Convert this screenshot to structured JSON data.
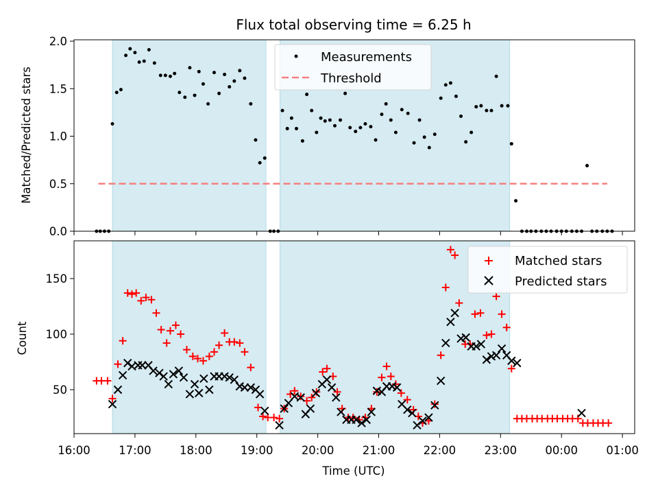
{
  "chart_data": {
    "type": "scatter",
    "title": "Flux total observing time = 6.25 h",
    "xlabel": "Time (UTC)",
    "x_tick_labels": [
      "16:00",
      "17:00",
      "18:00",
      "19:00",
      "20:00",
      "21:00",
      "22:00",
      "23:00",
      "00:00",
      "01:00"
    ],
    "x_range_hours": [
      16.0,
      25.2
    ],
    "shaded_regions": [
      [
        16.63,
        19.15
      ],
      [
        19.38,
        23.15
      ]
    ],
    "top": {
      "ylabel": "Matched/Predicted stars",
      "ylim": [
        0,
        2.0
      ],
      "y_ticks": [
        "0.0",
        "0.5",
        "1.0",
        "1.5",
        "2.0"
      ],
      "legend": {
        "measurements": "Measurements",
        "threshold": "Threshold"
      },
      "threshold": {
        "value": 0.5,
        "x_start": 16.4,
        "x_end": 24.75
      },
      "measurements": [
        [
          16.37,
          0
        ],
        [
          16.43,
          0
        ],
        [
          16.5,
          0
        ],
        [
          16.57,
          0
        ],
        [
          16.63,
          1.13
        ],
        [
          16.7,
          1.46
        ],
        [
          16.77,
          1.49
        ],
        [
          16.85,
          1.85
        ],
        [
          16.92,
          1.92
        ],
        [
          17.0,
          1.88
        ],
        [
          17.07,
          1.78
        ],
        [
          17.15,
          1.79
        ],
        [
          17.23,
          1.91
        ],
        [
          17.32,
          1.77
        ],
        [
          17.42,
          1.64
        ],
        [
          17.5,
          1.64
        ],
        [
          17.58,
          1.63
        ],
        [
          17.65,
          1.66
        ],
        [
          17.73,
          1.46
        ],
        [
          17.82,
          1.41
        ],
        [
          17.9,
          1.72
        ],
        [
          17.98,
          1.43
        ],
        [
          18.05,
          1.68
        ],
        [
          18.12,
          1.55
        ],
        [
          18.2,
          1.34
        ],
        [
          18.3,
          1.67
        ],
        [
          18.38,
          1.45
        ],
        [
          18.47,
          1.65
        ],
        [
          18.55,
          1.52
        ],
        [
          18.63,
          1.58
        ],
        [
          18.72,
          1.69
        ],
        [
          18.8,
          1.61
        ],
        [
          18.9,
          1.34
        ],
        [
          18.98,
          0.96
        ],
        [
          19.05,
          0.72
        ],
        [
          19.13,
          0.77
        ],
        [
          19.22,
          0
        ],
        [
          19.28,
          0
        ],
        [
          19.35,
          0
        ],
        [
          19.42,
          1.27
        ],
        [
          19.5,
          1.08
        ],
        [
          19.57,
          1.19
        ],
        [
          19.65,
          1.08
        ],
        [
          19.75,
          0.95
        ],
        [
          19.82,
          1.44
        ],
        [
          19.9,
          1.27
        ],
        [
          19.98,
          1.04
        ],
        [
          20.05,
          1.19
        ],
        [
          20.12,
          1.16
        ],
        [
          20.2,
          1.17
        ],
        [
          20.28,
          1.11
        ],
        [
          20.37,
          1.17
        ],
        [
          20.45,
          1.45
        ],
        [
          20.53,
          1.09
        ],
        [
          20.62,
          1.05
        ],
        [
          20.7,
          1.09
        ],
        [
          20.78,
          1.13
        ],
        [
          20.87,
          1.1
        ],
        [
          20.95,
          0.96
        ],
        [
          21.05,
          1.23
        ],
        [
          21.12,
          1.34
        ],
        [
          21.2,
          1.17
        ],
        [
          21.28,
          1.04
        ],
        [
          21.38,
          1.28
        ],
        [
          21.48,
          1.24
        ],
        [
          21.58,
          0.93
        ],
        [
          21.67,
          1.17
        ],
        [
          21.75,
          0.99
        ],
        [
          21.83,
          0.88
        ],
        [
          21.92,
          1.02
        ],
        [
          22.02,
          1.4
        ],
        [
          22.1,
          1.54
        ],
        [
          22.18,
          1.56
        ],
        [
          22.27,
          1.42
        ],
        [
          22.35,
          1.21
        ],
        [
          22.43,
          0.94
        ],
        [
          22.52,
          1.04
        ],
        [
          22.6,
          1.31
        ],
        [
          22.68,
          1.32
        ],
        [
          22.77,
          1.27
        ],
        [
          22.85,
          1.27
        ],
        [
          22.93,
          1.63
        ],
        [
          23.02,
          1.32
        ],
        [
          23.12,
          1.32
        ],
        [
          23.18,
          0.92
        ],
        [
          23.25,
          0.32
        ],
        [
          23.35,
          0
        ],
        [
          23.43,
          0
        ],
        [
          23.5,
          0
        ],
        [
          23.58,
          0
        ],
        [
          23.67,
          0
        ],
        [
          23.75,
          0
        ],
        [
          23.83,
          0
        ],
        [
          23.92,
          0
        ],
        [
          24.0,
          0
        ],
        [
          24.08,
          0
        ],
        [
          24.17,
          0
        ],
        [
          24.25,
          0
        ],
        [
          24.33,
          0
        ],
        [
          24.42,
          0.69
        ],
        [
          24.5,
          0
        ],
        [
          24.58,
          0
        ],
        [
          24.67,
          0
        ],
        [
          24.75,
          0
        ],
        [
          24.83,
          0
        ]
      ]
    },
    "bottom": {
      "ylabel": "Count",
      "ylim": [
        8,
        186
      ],
      "y_ticks": [
        50,
        100,
        150
      ],
      "legend": {
        "matched": "Matched stars",
        "predicted": "Predicted stars"
      },
      "matched": [
        [
          16.37,
          58
        ],
        [
          16.45,
          58
        ],
        [
          16.55,
          58
        ],
        [
          16.63,
          42
        ],
        [
          16.72,
          73
        ],
        [
          16.8,
          94
        ],
        [
          16.88,
          137
        ],
        [
          16.95,
          136
        ],
        [
          17.02,
          137
        ],
        [
          17.1,
          130
        ],
        [
          17.18,
          133
        ],
        [
          17.27,
          131
        ],
        [
          17.35,
          119
        ],
        [
          17.43,
          104
        ],
        [
          17.52,
          92
        ],
        [
          17.58,
          103
        ],
        [
          17.67,
          108
        ],
        [
          17.75,
          100
        ],
        [
          17.85,
          86
        ],
        [
          17.95,
          80
        ],
        [
          18.03,
          78
        ],
        [
          18.12,
          76
        ],
        [
          18.22,
          80
        ],
        [
          18.3,
          84
        ],
        [
          18.38,
          90
        ],
        [
          18.47,
          101
        ],
        [
          18.55,
          93
        ],
        [
          18.63,
          93
        ],
        [
          18.72,
          92
        ],
        [
          18.8,
          84
        ],
        [
          18.9,
          70
        ],
        [
          19.02,
          34
        ],
        [
          19.1,
          26
        ],
        [
          19.18,
          25
        ],
        [
          19.28,
          25
        ],
        [
          19.37,
          24
        ],
        [
          19.45,
          33
        ],
        [
          19.55,
          46
        ],
        [
          19.62,
          49
        ],
        [
          19.72,
          44
        ],
        [
          19.82,
          40
        ],
        [
          19.9,
          43
        ],
        [
          19.98,
          48
        ],
        [
          20.08,
          66
        ],
        [
          20.15,
          69
        ],
        [
          20.25,
          62
        ],
        [
          20.32,
          48
        ],
        [
          20.4,
          33
        ],
        [
          20.5,
          25
        ],
        [
          20.58,
          25
        ],
        [
          20.68,
          23
        ],
        [
          20.78,
          25
        ],
        [
          20.88,
          33
        ],
        [
          20.97,
          48
        ],
        [
          21.05,
          61
        ],
        [
          21.13,
          71
        ],
        [
          21.2,
          62
        ],
        [
          21.28,
          55
        ],
        [
          21.37,
          47
        ],
        [
          21.47,
          41
        ],
        [
          21.57,
          32
        ],
        [
          21.65,
          26
        ],
        [
          21.72,
          20
        ],
        [
          21.82,
          22
        ],
        [
          21.92,
          37
        ],
        [
          22.02,
          81
        ],
        [
          22.1,
          142
        ],
        [
          22.18,
          176
        ],
        [
          22.25,
          171
        ],
        [
          22.32,
          128
        ],
        [
          22.42,
          91
        ],
        [
          22.5,
          91
        ],
        [
          22.58,
          118
        ],
        [
          22.67,
          119
        ],
        [
          22.77,
          99
        ],
        [
          22.85,
          100
        ],
        [
          22.93,
          134
        ],
        [
          23.02,
          118
        ],
        [
          23.1,
          106
        ],
        [
          23.18,
          69
        ],
        [
          23.27,
          24
        ],
        [
          23.35,
          24
        ],
        [
          23.43,
          24
        ],
        [
          23.52,
          24
        ],
        [
          23.6,
          24
        ],
        [
          23.68,
          24
        ],
        [
          23.77,
          24
        ],
        [
          23.85,
          24
        ],
        [
          23.93,
          24
        ],
        [
          24.02,
          24
        ],
        [
          24.1,
          24
        ],
        [
          24.18,
          24
        ],
        [
          24.27,
          24
        ],
        [
          24.35,
          20
        ],
        [
          24.43,
          20
        ],
        [
          24.52,
          20
        ],
        [
          24.6,
          20
        ],
        [
          24.68,
          20
        ],
        [
          24.77,
          20
        ]
      ],
      "predicted": [
        [
          16.63,
          37
        ],
        [
          16.72,
          50
        ],
        [
          16.8,
          63
        ],
        [
          16.88,
          74
        ],
        [
          16.95,
          71
        ],
        [
          17.05,
          72
        ],
        [
          17.12,
          72
        ],
        [
          17.22,
          72
        ],
        [
          17.3,
          67
        ],
        [
          17.4,
          65
        ],
        [
          17.47,
          62
        ],
        [
          17.55,
          55
        ],
        [
          17.63,
          64
        ],
        [
          17.72,
          67
        ],
        [
          17.8,
          61
        ],
        [
          17.9,
          46
        ],
        [
          17.98,
          55
        ],
        [
          18.05,
          47
        ],
        [
          18.13,
          60
        ],
        [
          18.22,
          50
        ],
        [
          18.3,
          62
        ],
        [
          18.38,
          62
        ],
        [
          18.47,
          62
        ],
        [
          18.55,
          61
        ],
        [
          18.63,
          59
        ],
        [
          18.72,
          53
        ],
        [
          18.8,
          52
        ],
        [
          18.9,
          52
        ],
        [
          18.98,
          50
        ],
        [
          19.05,
          46
        ],
        [
          19.13,
          31
        ],
        [
          19.37,
          18
        ],
        [
          19.45,
          33
        ],
        [
          19.52,
          38
        ],
        [
          19.62,
          44
        ],
        [
          19.72,
          43
        ],
        [
          19.8,
          28
        ],
        [
          19.88,
          33
        ],
        [
          19.97,
          47
        ],
        [
          20.07,
          55
        ],
        [
          20.15,
          59
        ],
        [
          20.23,
          52
        ],
        [
          20.3,
          43
        ],
        [
          20.38,
          30
        ],
        [
          20.47,
          23
        ],
        [
          20.55,
          23
        ],
        [
          20.63,
          23
        ],
        [
          20.72,
          20
        ],
        [
          20.8,
          23
        ],
        [
          20.88,
          30
        ],
        [
          20.97,
          49
        ],
        [
          21.05,
          48
        ],
        [
          21.13,
          53
        ],
        [
          21.22,
          53
        ],
        [
          21.3,
          52
        ],
        [
          21.38,
          37
        ],
        [
          21.47,
          32
        ],
        [
          21.55,
          29
        ],
        [
          21.63,
          18
        ],
        [
          21.72,
          22
        ],
        [
          21.82,
          25
        ],
        [
          21.92,
          36
        ],
        [
          22.02,
          58
        ],
        [
          22.1,
          92
        ],
        [
          22.18,
          111
        ],
        [
          22.25,
          119
        ],
        [
          22.35,
          96
        ],
        [
          22.43,
          97
        ],
        [
          22.52,
          89
        ],
        [
          22.6,
          89
        ],
        [
          22.68,
          91
        ],
        [
          22.77,
          77
        ],
        [
          22.85,
          80
        ],
        [
          22.93,
          81
        ],
        [
          23.02,
          87
        ],
        [
          23.1,
          81
        ],
        [
          23.18,
          76
        ],
        [
          23.27,
          74
        ],
        [
          24.33,
          29
        ]
      ]
    }
  }
}
